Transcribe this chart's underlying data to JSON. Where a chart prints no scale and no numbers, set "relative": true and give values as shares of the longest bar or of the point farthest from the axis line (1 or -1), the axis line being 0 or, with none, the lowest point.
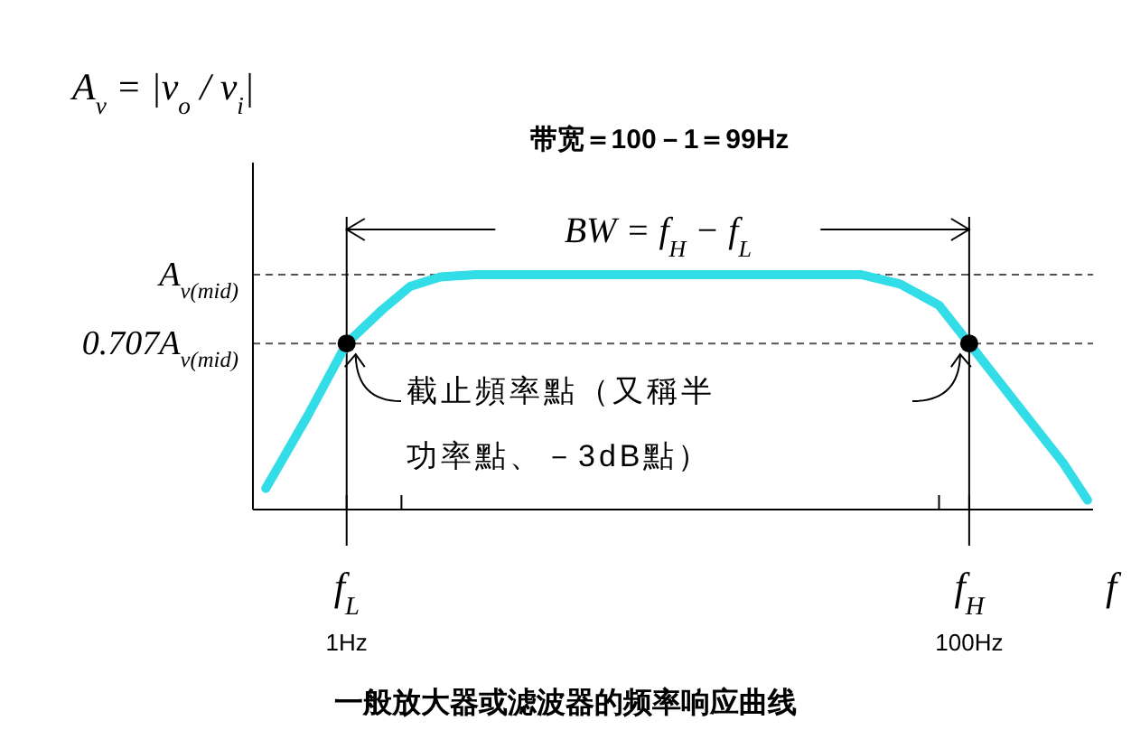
{
  "chart_data": {
    "type": "line",
    "relative": true,
    "title": "一般放大器或滤波器的频率响应曲线",
    "ylabel": "A$_{v}$ = |v$_{o}$ / v$_{i}$|",
    "xlabel": "f",
    "log": "x",
    "xlim": [
      0.5,
      250
    ],
    "xticks": [
      {
        "value": 1,
        "label": "f$_{L}$\n1Hz"
      },
      {
        "value": 1.5,
        "label": null
      },
      {
        "value": 80,
        "label": null
      },
      {
        "value": 100,
        "label": "f$_{H}$\n100Hz"
      }
    ],
    "series": [
      {
        "color": "#33dde8",
        "x": [
          0.55,
          0.75,
          1,
          1.3,
          1.6,
          2,
          2.6,
          3,
          45,
          60,
          80,
          100,
          140,
          200,
          240
        ],
        "values": [
          0.09,
          0.4,
          0.707,
          0.85,
          0.95,
          0.99,
          1,
          1,
          1,
          0.96,
          0.87,
          0.707,
          0.46,
          0.2,
          0.04
        ]
      },
      {
        "type": "scatter",
        "color": "#000000",
        "marker": "circle",
        "x": [
          1,
          100
        ],
        "values": [
          0.707,
          0.707
        ]
      }
    ],
    "ref_lines": [
      {
        "axis": "y",
        "value": 1,
        "label": "A$_{v(mid)}$",
        "line_style": "dashed",
        "color": "#555555"
      },
      {
        "axis": "y",
        "value": 0.707,
        "label": "0.707A$_{v(mid)}$",
        "line_style": "dashed",
        "color": "#555555"
      },
      {
        "axis": "x",
        "value": 1,
        "label": null,
        "line_style": "solid",
        "color": "#000000"
      },
      {
        "axis": "x",
        "value": 100,
        "label": null,
        "line_style": "solid",
        "color": "#000000"
      }
    ],
    "annotations": [
      "带宽＝100－1＝99Hz",
      "BW = f$_{H}$ − f$_{L}$",
      "截止頻率點（又稱半",
      "功率點、－3dB點）"
    ]
  }
}
